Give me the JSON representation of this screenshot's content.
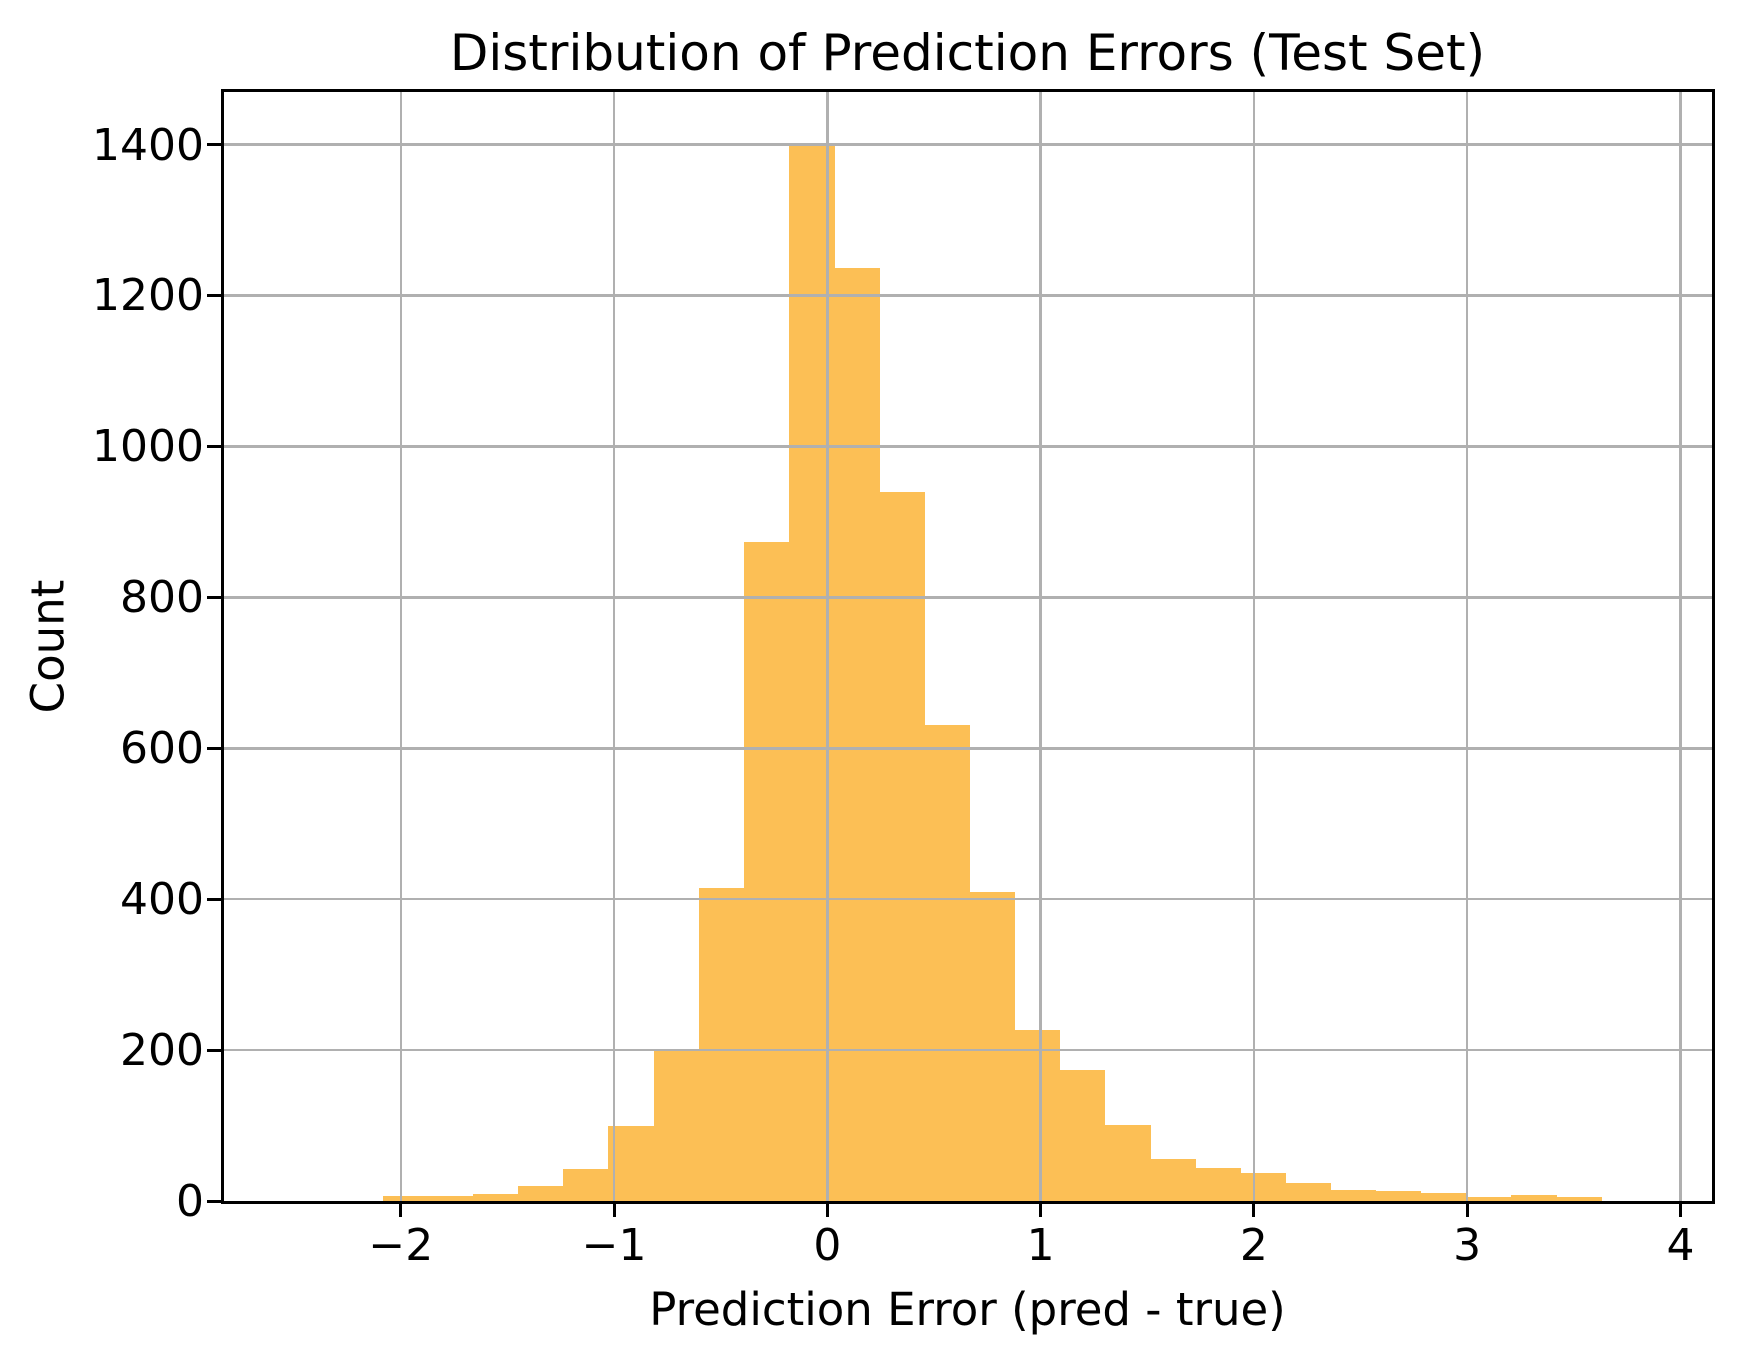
{
  "chart_data": {
    "type": "bar",
    "subtype": "histogram",
    "title": "Distribution of Prediction Errors (Test Set)",
    "xlabel": "Prediction Error (pred - true)",
    "ylabel": "Count",
    "bin_edges": [
      -2.085,
      -1.873,
      -1.662,
      -1.45,
      -1.239,
      -1.027,
      -0.815,
      -0.604,
      -0.392,
      -0.181,
      0.031,
      0.242,
      0.454,
      0.665,
      0.877,
      1.089,
      1.3,
      1.512,
      1.723,
      1.935,
      2.147,
      2.358,
      2.57,
      2.781,
      2.993,
      3.205,
      3.416,
      3.628
    ],
    "counts": [
      7,
      6,
      9,
      20,
      42,
      100,
      200,
      415,
      874,
      1400,
      1236,
      940,
      631,
      410,
      227,
      174,
      101,
      56,
      44,
      37,
      24,
      14,
      13,
      10,
      5,
      8,
      5
    ],
    "xticks": [
      -2,
      -1,
      0,
      1,
      2,
      3,
      4
    ],
    "xtick_labels": [
      "−2",
      "−1",
      "0",
      "1",
      "2",
      "3",
      "4"
    ],
    "yticks": [
      0,
      200,
      400,
      600,
      800,
      1000,
      1200,
      1400
    ],
    "ytick_labels": [
      "0",
      "200",
      "400",
      "600",
      "800",
      "1000",
      "1200",
      "1400"
    ],
    "xlim": [
      -2.834,
      4.148
    ],
    "ylim": [
      0,
      1471
    ],
    "grid": true,
    "grid_over_bars": true,
    "bar_color": "#FCBF55",
    "grid_color": "#B0B0B0",
    "axis_color": "#000000",
    "background_color": "#FFFFFF"
  }
}
